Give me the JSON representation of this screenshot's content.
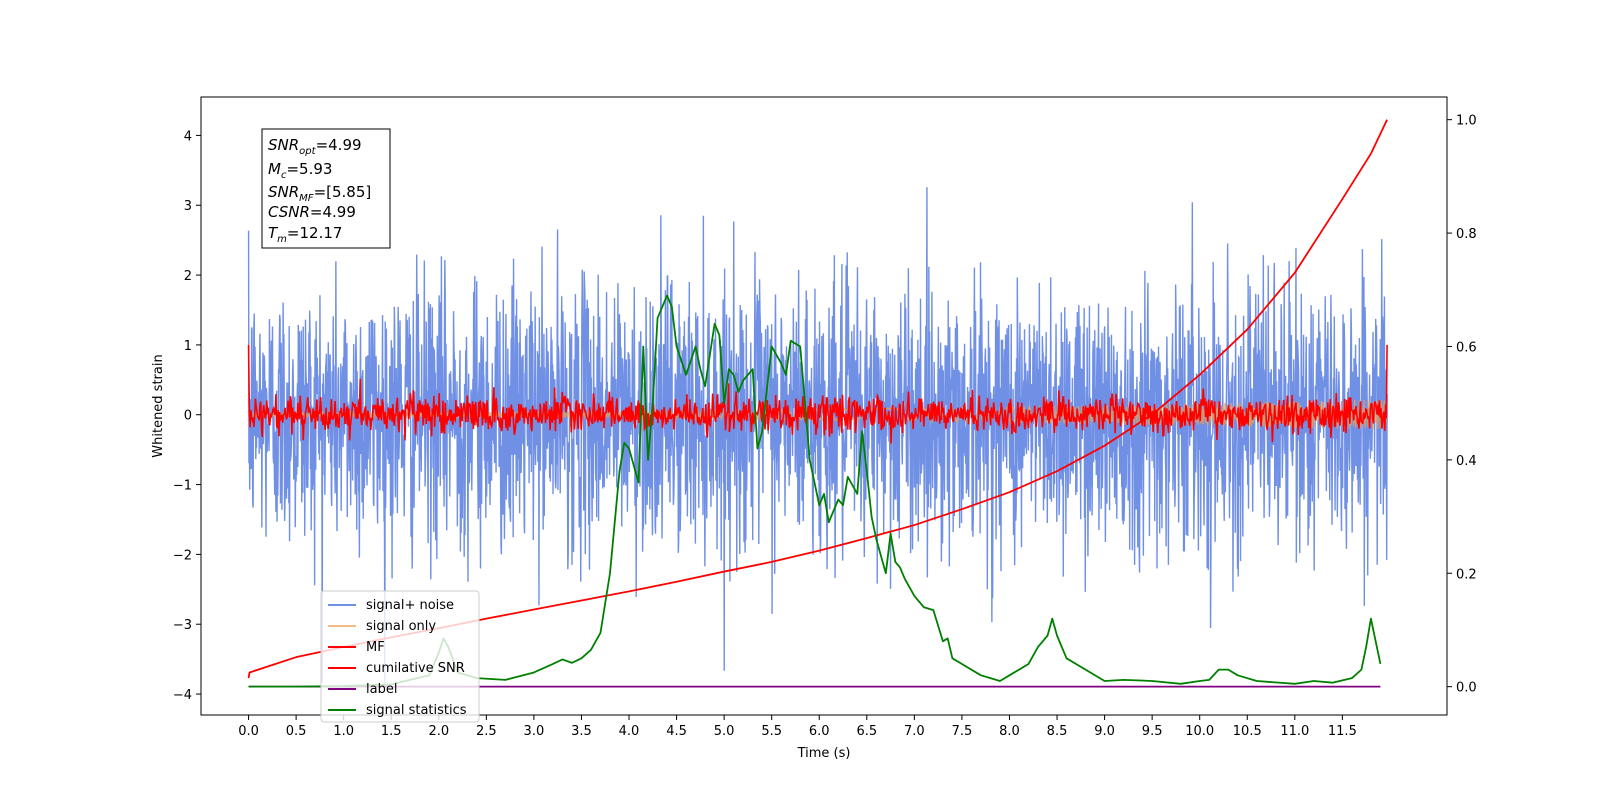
{
  "chart_data": {
    "type": "line",
    "xlabel": "Time (s)",
    "ylabel": "Whitened strain",
    "xlim": [
      -0.5,
      12.6
    ],
    "ylim": [
      -4.3,
      4.55
    ],
    "y2lim": [
      -0.05,
      1.04
    ],
    "x_ticks": [
      "0.0",
      "0.5",
      "1.0",
      "1.5",
      "2.0",
      "2.5",
      "3.0",
      "3.5",
      "4.0",
      "4.5",
      "5.0",
      "5.5",
      "6.0",
      "6.5",
      "7.0",
      "7.5",
      "8.0",
      "8.5",
      "9.0",
      "9.5",
      "10.0",
      "10.5",
      "11.0",
      "11.5"
    ],
    "y_ticks": [
      "4",
      "3",
      "2",
      "1",
      "0",
      "−1",
      "−2",
      "−3",
      "−4"
    ],
    "y2_ticks": [
      "1.0",
      "0.8",
      "0.6",
      "0.4",
      "0.2",
      "0.0"
    ],
    "grid": false,
    "legend_position": "lower-left",
    "info_box": {
      "snr_opt_value": "=4.99",
      "mc_value": "=5.93",
      "snr_mf_value": "=[5.85]",
      "csnr_value": "=4.99",
      "tm_value": "=12.17"
    },
    "colors": {
      "signal_noise": "#7090e6",
      "signal_only": "#f0a050",
      "mf": "#ff0000",
      "cumulative_snr": "#ff0000",
      "label": "#800080",
      "signal_statistics": "#008000"
    },
    "series": [
      {
        "name": "signal+ noise",
        "axis": "left",
        "kind": "noise",
        "x_range": [
          0,
          11.97
        ],
        "sigma": 0.95,
        "points": 3000
      },
      {
        "name": "signal only",
        "axis": "left",
        "kind": "envelope",
        "x_range": [
          0,
          11.97
        ],
        "amplitude_start": 0.03,
        "amplitude_end": 0.22
      },
      {
        "name": "MF",
        "axis": "left",
        "kind": "noise",
        "x_range": [
          0,
          11.97
        ],
        "sigma": 0.13,
        "points": 1500,
        "edge_values": [
          1.0,
          1.0
        ]
      },
      {
        "name": "cumilative SNR",
        "axis": "right",
        "x": [
          0.0,
          0.01,
          0.5,
          1.0,
          1.5,
          2.0,
          2.5,
          3.0,
          3.5,
          4.0,
          4.5,
          5.0,
          5.5,
          6.0,
          6.5,
          7.0,
          7.5,
          8.0,
          8.5,
          9.0,
          9.5,
          10.0,
          10.5,
          11.0,
          11.5,
          11.8,
          11.97
        ],
        "y": [
          0.015,
          0.025,
          0.052,
          0.07,
          0.087,
          0.103,
          0.12,
          0.136,
          0.152,
          0.168,
          0.185,
          0.203,
          0.22,
          0.24,
          0.262,
          0.285,
          0.313,
          0.343,
          0.38,
          0.425,
          0.48,
          0.55,
          0.63,
          0.73,
          0.86,
          0.94,
          1.0
        ]
      },
      {
        "name": "label",
        "axis": "right",
        "x": [
          0.0,
          11.9
        ],
        "y": [
          0.0,
          0.0
        ]
      },
      {
        "name": "signal statistics",
        "axis": "right",
        "x": [
          0.0,
          0.5,
          1.0,
          1.5,
          1.9,
          2.0,
          2.05,
          2.1,
          2.2,
          2.4,
          2.7,
          3.0,
          3.2,
          3.3,
          3.4,
          3.5,
          3.6,
          3.7,
          3.8,
          3.9,
          3.95,
          4.0,
          4.1,
          4.15,
          4.2,
          4.25,
          4.3,
          4.4,
          4.45,
          4.5,
          4.6,
          4.7,
          4.75,
          4.8,
          4.9,
          4.95,
          5.0,
          5.05,
          5.1,
          5.15,
          5.2,
          5.3,
          5.35,
          5.4,
          5.5,
          5.6,
          5.65,
          5.7,
          5.8,
          5.85,
          5.9,
          6.0,
          6.05,
          6.1,
          6.2,
          6.25,
          6.3,
          6.4,
          6.45,
          6.5,
          6.55,
          6.6,
          6.7,
          6.75,
          6.8,
          6.85,
          6.9,
          7.0,
          7.1,
          7.2,
          7.3,
          7.35,
          7.4,
          7.5,
          7.7,
          7.8,
          7.9,
          8.0,
          8.2,
          8.3,
          8.4,
          8.45,
          8.5,
          8.6,
          8.8,
          9.0,
          9.2,
          9.5,
          9.8,
          10.0,
          10.1,
          10.2,
          10.3,
          10.4,
          10.6,
          11.0,
          11.2,
          11.4,
          11.6,
          11.7,
          11.75,
          11.8,
          11.9
        ],
        "y": [
          0.0,
          0.0,
          0.001,
          0.004,
          0.02,
          0.06,
          0.085,
          0.07,
          0.025,
          0.015,
          0.012,
          0.025,
          0.04,
          0.048,
          0.042,
          0.05,
          0.065,
          0.095,
          0.2,
          0.38,
          0.43,
          0.42,
          0.36,
          0.6,
          0.4,
          0.5,
          0.65,
          0.69,
          0.67,
          0.6,
          0.55,
          0.6,
          0.56,
          0.53,
          0.64,
          0.62,
          0.5,
          0.56,
          0.55,
          0.52,
          0.54,
          0.56,
          0.42,
          0.45,
          0.6,
          0.57,
          0.55,
          0.61,
          0.6,
          0.5,
          0.4,
          0.32,
          0.34,
          0.29,
          0.33,
          0.32,
          0.37,
          0.34,
          0.45,
          0.38,
          0.3,
          0.26,
          0.2,
          0.27,
          0.22,
          0.21,
          0.19,
          0.16,
          0.14,
          0.135,
          0.08,
          0.085,
          0.05,
          0.04,
          0.02,
          0.015,
          0.01,
          0.02,
          0.04,
          0.07,
          0.09,
          0.12,
          0.09,
          0.05,
          0.03,
          0.01,
          0.012,
          0.01,
          0.005,
          0.01,
          0.012,
          0.03,
          0.03,
          0.02,
          0.01,
          0.005,
          0.01,
          0.007,
          0.015,
          0.03,
          0.07,
          0.12,
          0.04
        ]
      }
    ]
  }
}
